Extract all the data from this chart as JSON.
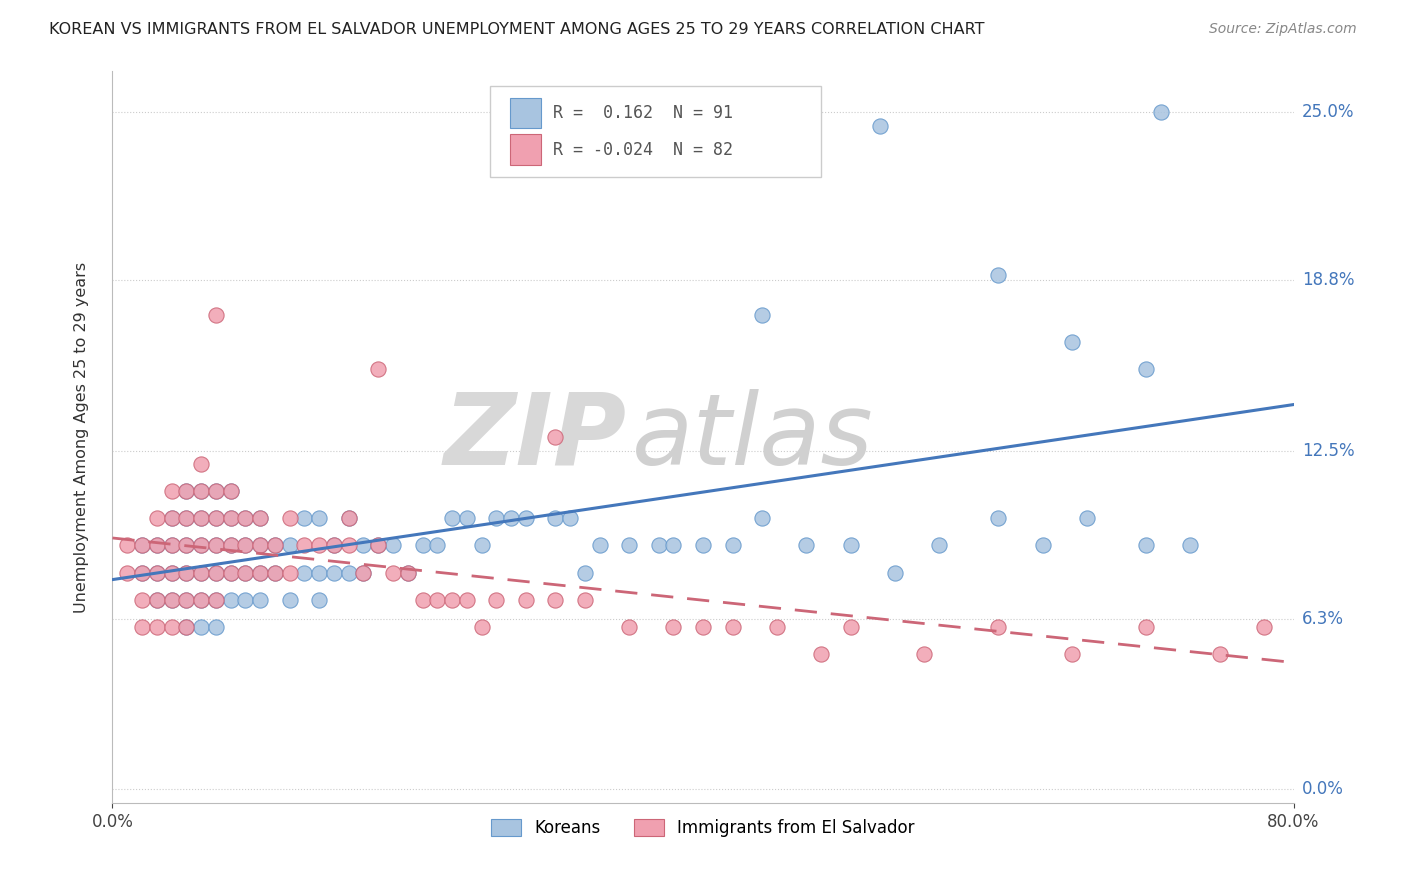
{
  "title": "KOREAN VS IMMIGRANTS FROM EL SALVADOR UNEMPLOYMENT AMONG AGES 25 TO 29 YEARS CORRELATION CHART",
  "source": "Source: ZipAtlas.com",
  "ylabel": "Unemployment Among Ages 25 to 29 years",
  "xlim": [
    0.0,
    0.8
  ],
  "ylim": [
    -0.005,
    0.265
  ],
  "ytick_labels": [
    "0.0%",
    "6.3%",
    "12.5%",
    "18.8%",
    "25.0%"
  ],
  "ytick_values": [
    0.0,
    0.063,
    0.125,
    0.188,
    0.25
  ],
  "xtick_labels": [
    "0.0%",
    "80.0%"
  ],
  "xtick_values": [
    0.0,
    0.8
  ],
  "korean_color": "#a8c4e0",
  "korean_edge": "#6699cc",
  "salvador_color": "#f0a0b0",
  "salvador_edge": "#cc6677",
  "korean_R": 0.162,
  "korean_N": 91,
  "salvador_R": -0.024,
  "salvador_N": 82,
  "legend_label_korean": "Koreans",
  "legend_label_salvador": "Immigrants from El Salvador",
  "korean_line_color": "#4477bb",
  "salvador_line_color": "#cc6677",
  "watermark_zip_color": "#d8d8d8",
  "watermark_atlas_color": "#d0d0d0",
  "grid_color": "#cccccc",
  "korean_x": [
    0.02,
    0.02,
    0.03,
    0.03,
    0.03,
    0.04,
    0.04,
    0.04,
    0.04,
    0.05,
    0.05,
    0.05,
    0.05,
    0.05,
    0.05,
    0.06,
    0.06,
    0.06,
    0.06,
    0.06,
    0.06,
    0.07,
    0.07,
    0.07,
    0.07,
    0.07,
    0.07,
    0.08,
    0.08,
    0.08,
    0.08,
    0.08,
    0.09,
    0.09,
    0.09,
    0.09,
    0.1,
    0.1,
    0.1,
    0.1,
    0.11,
    0.11,
    0.12,
    0.12,
    0.13,
    0.13,
    0.14,
    0.14,
    0.14,
    0.15,
    0.15,
    0.16,
    0.16,
    0.17,
    0.17,
    0.18,
    0.19,
    0.2,
    0.21,
    0.22,
    0.23,
    0.24,
    0.25,
    0.26,
    0.27,
    0.28,
    0.3,
    0.31,
    0.32,
    0.33,
    0.35,
    0.37,
    0.38,
    0.4,
    0.42,
    0.44,
    0.47,
    0.5,
    0.53,
    0.56,
    0.6,
    0.63,
    0.66,
    0.7,
    0.73,
    0.52,
    0.6,
    0.65,
    0.7,
    0.44,
    0.71
  ],
  "korean_y": [
    0.08,
    0.09,
    0.07,
    0.08,
    0.09,
    0.07,
    0.08,
    0.09,
    0.1,
    0.06,
    0.07,
    0.08,
    0.09,
    0.1,
    0.11,
    0.06,
    0.07,
    0.08,
    0.09,
    0.1,
    0.11,
    0.06,
    0.07,
    0.08,
    0.09,
    0.1,
    0.11,
    0.07,
    0.08,
    0.09,
    0.1,
    0.11,
    0.07,
    0.08,
    0.09,
    0.1,
    0.07,
    0.08,
    0.09,
    0.1,
    0.08,
    0.09,
    0.07,
    0.09,
    0.08,
    0.1,
    0.07,
    0.08,
    0.1,
    0.08,
    0.09,
    0.08,
    0.1,
    0.08,
    0.09,
    0.09,
    0.09,
    0.08,
    0.09,
    0.09,
    0.1,
    0.1,
    0.09,
    0.1,
    0.1,
    0.1,
    0.1,
    0.1,
    0.08,
    0.09,
    0.09,
    0.09,
    0.09,
    0.09,
    0.09,
    0.1,
    0.09,
    0.09,
    0.08,
    0.09,
    0.1,
    0.09,
    0.1,
    0.09,
    0.09,
    0.245,
    0.19,
    0.165,
    0.155,
    0.175,
    0.25
  ],
  "salvador_x": [
    0.01,
    0.01,
    0.02,
    0.02,
    0.02,
    0.02,
    0.03,
    0.03,
    0.03,
    0.03,
    0.03,
    0.04,
    0.04,
    0.04,
    0.04,
    0.04,
    0.04,
    0.05,
    0.05,
    0.05,
    0.05,
    0.05,
    0.05,
    0.06,
    0.06,
    0.06,
    0.06,
    0.06,
    0.06,
    0.07,
    0.07,
    0.07,
    0.07,
    0.07,
    0.08,
    0.08,
    0.08,
    0.08,
    0.09,
    0.09,
    0.09,
    0.1,
    0.1,
    0.1,
    0.11,
    0.11,
    0.12,
    0.12,
    0.13,
    0.14,
    0.15,
    0.16,
    0.16,
    0.17,
    0.18,
    0.19,
    0.2,
    0.21,
    0.22,
    0.23,
    0.24,
    0.25,
    0.26,
    0.28,
    0.3,
    0.32,
    0.35,
    0.38,
    0.4,
    0.42,
    0.45,
    0.48,
    0.5,
    0.55,
    0.6,
    0.65,
    0.7,
    0.75,
    0.78,
    0.3,
    0.18,
    0.07
  ],
  "salvador_y": [
    0.08,
    0.09,
    0.06,
    0.07,
    0.08,
    0.09,
    0.06,
    0.07,
    0.08,
    0.09,
    0.1,
    0.06,
    0.07,
    0.08,
    0.09,
    0.1,
    0.11,
    0.06,
    0.07,
    0.08,
    0.09,
    0.1,
    0.11,
    0.07,
    0.08,
    0.09,
    0.1,
    0.11,
    0.12,
    0.07,
    0.08,
    0.09,
    0.1,
    0.11,
    0.08,
    0.09,
    0.1,
    0.11,
    0.08,
    0.09,
    0.1,
    0.08,
    0.09,
    0.1,
    0.08,
    0.09,
    0.08,
    0.1,
    0.09,
    0.09,
    0.09,
    0.09,
    0.1,
    0.08,
    0.09,
    0.08,
    0.08,
    0.07,
    0.07,
    0.07,
    0.07,
    0.06,
    0.07,
    0.07,
    0.07,
    0.07,
    0.06,
    0.06,
    0.06,
    0.06,
    0.06,
    0.05,
    0.06,
    0.05,
    0.06,
    0.05,
    0.06,
    0.05,
    0.06,
    0.13,
    0.155,
    0.175
  ]
}
